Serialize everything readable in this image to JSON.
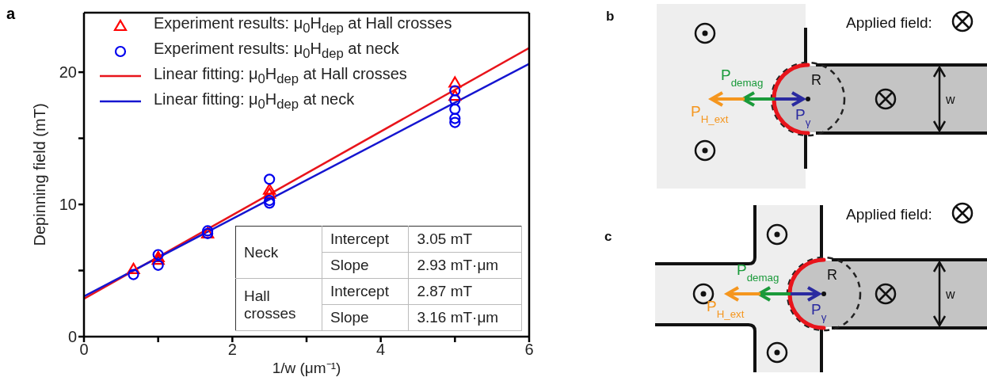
{
  "chart_data": [
    {
      "type": "scatter",
      "xlabel": "1/w (μm⁻¹)",
      "ylabel": "Depinning field (mT)",
      "xlim": [
        0,
        6
      ],
      "ylim": [
        0,
        24.5
      ],
      "xticks": [
        {
          "value": 0,
          "label": "0"
        },
        {
          "value": 1,
          "label": null
        },
        2,
        {
          "value": 3,
          "label": null
        },
        4,
        {
          "value": 5,
          "label": null
        },
        6
      ],
      "yticks": [
        0,
        {
          "value": 5,
          "label": null
        },
        10,
        {
          "value": 15,
          "label": null
        },
        20
      ],
      "legend": "top left",
      "annotations": [
        "a",
        "Neck",
        "Intercept",
        "3.05 mT",
        "Slope",
        "2.93 mT·μm",
        "Hall crosses",
        "Intercept",
        "2.87 mT",
        "Slope",
        "3.16 mT·μm"
      ],
      "series": [
        {
          "name": "Experiment results: μ$_{0}$H$_{dep}$ at Hall crosses",
          "type": "scatter",
          "marker": "triangle",
          "color": "#ff0000",
          "x": [
            0.667,
            1,
            1,
            1.667,
            2.5,
            2.5,
            5,
            5
          ],
          "values": [
            5.1,
            6.0,
            5.8,
            7.8,
            11.1,
            10.8,
            19.2,
            18.2
          ]
        },
        {
          "name": "Experiment results: μ$_{0}$H$_{dep}$ at neck",
          "type": "scatter",
          "marker": "circle",
          "color": "#0000ee",
          "x": [
            0.667,
            1,
            1,
            1.667,
            1.667,
            2.5,
            2.5,
            2.5,
            5,
            5,
            5,
            5,
            5
          ],
          "values": [
            4.7,
            6.2,
            5.4,
            8.0,
            7.8,
            11.9,
            10.3,
            10.1,
            18.6,
            17.9,
            17.2,
            16.5,
            16.2
          ]
        },
        {
          "name": "Linear fitting: μ$_{0}$H$_{dep}$ at Hall crosses",
          "type": "line",
          "marker": "none",
          "line_style": "solid",
          "color": "#e8141b",
          "x": [
            0,
            6
          ],
          "values": [
            2.87,
            21.83
          ]
        },
        {
          "name": "Linear fitting: μ$_{0}$H$_{dep}$ at neck",
          "type": "line",
          "marker": "none",
          "line_style": "solid",
          "color": "#1515d0",
          "x": [
            0,
            6
          ],
          "values": [
            3.05,
            20.63
          ]
        }
      ]
    },
    {
      "type": "other",
      "annotations": [
        "b",
        "Applied field:",
        "P$_{demag}$",
        "P$_{H_ext}$",
        "P$_{γ}$",
        "R",
        "w"
      ]
    },
    {
      "type": "other",
      "annotations": [
        "c",
        "Applied field:",
        "P$_{demag}$",
        "P$_{H_ext}$",
        "P$_{γ}$",
        "R",
        "w"
      ]
    }
  ]
}
